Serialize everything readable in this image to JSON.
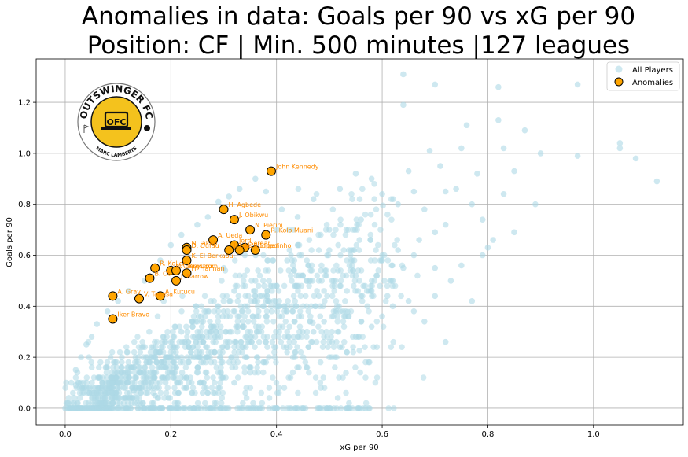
{
  "chart_data": {
    "type": "scatter",
    "title_line1": "Anomalies in data: Goals per 90 vs xG per 90",
    "title_line2": "Position: CF | Min. 500 minutes |127 leagues",
    "xlabel": "xG per 90",
    "ylabel": "Goals per 90",
    "xlim": [
      -0.055,
      1.17
    ],
    "ylim": [
      -0.065,
      1.37
    ],
    "x_ticks": [
      "0.0",
      "0.2",
      "0.4",
      "0.6",
      "0.8",
      "1.0"
    ],
    "x_tick_values": [
      0,
      0.2,
      0.4,
      0.6,
      0.8,
      1.0
    ],
    "y_ticks": [
      "0.0",
      "0.2",
      "0.4",
      "0.6",
      "0.8",
      "1.0",
      "1.2"
    ],
    "y_tick_values": [
      0,
      0.2,
      0.4,
      0.6,
      0.8,
      1.0,
      1.2
    ],
    "grid": true,
    "legend_position": "top-right",
    "colors": {
      "all_players": "#add8e6",
      "anomalies": "#ffa500",
      "anomaly_labels": "#ff8c00"
    },
    "series": [
      {
        "name": "All Players",
        "points": [
          [
            0.64,
            1.31
          ],
          [
            0.7,
            1.27
          ],
          [
            0.97,
            1.27
          ],
          [
            0.82,
            1.26
          ],
          [
            0.64,
            1.19
          ],
          [
            0.82,
            1.13
          ],
          [
            0.76,
            1.11
          ],
          [
            0.87,
            1.09
          ],
          [
            1.05,
            1.04
          ],
          [
            1.05,
            1.02
          ],
          [
            0.9,
            1.0
          ],
          [
            0.97,
            0.99
          ],
          [
            1.08,
            0.98
          ],
          [
            0.69,
            1.01
          ],
          [
            0.75,
            1.02
          ],
          [
            0.83,
            1.02
          ],
          [
            0.71,
            0.95
          ],
          [
            0.85,
            0.93
          ],
          [
            0.78,
            0.92
          ],
          [
            0.65,
            0.93
          ],
          [
            0.55,
            0.92
          ],
          [
            0.58,
            0.9
          ],
          [
            1.12,
            0.89
          ],
          [
            0.83,
            0.84
          ],
          [
            0.74,
            0.86
          ],
          [
            0.66,
            0.85
          ],
          [
            0.72,
            0.85
          ],
          [
            0.6,
            0.84
          ],
          [
            0.52,
            0.86
          ],
          [
            0.63,
            0.8
          ],
          [
            0.68,
            0.78
          ],
          [
            0.77,
            0.8
          ],
          [
            0.89,
            0.8
          ],
          [
            0.79,
            0.74
          ],
          [
            0.72,
            0.72
          ],
          [
            0.85,
            0.69
          ],
          [
            0.81,
            0.66
          ],
          [
            0.8,
            0.63
          ],
          [
            0.79,
            0.6
          ],
          [
            0.77,
            0.42
          ],
          [
            0.72,
            0.26
          ],
          [
            0.68,
            0.34
          ],
          [
            0.65,
            0.42
          ],
          [
            0.62,
            0.5
          ],
          [
            0.58,
            0.46
          ],
          [
            0.55,
            0.52
          ],
          [
            0.6,
            0.58
          ],
          [
            0.63,
            0.62
          ],
          [
            0.67,
            0.66
          ],
          [
            0.7,
            0.69
          ],
          [
            0.56,
            0.74
          ],
          [
            0.5,
            0.7
          ],
          [
            0.47,
            0.82
          ],
          [
            0.44,
            0.75
          ],
          [
            0.41,
            0.78
          ],
          [
            0.38,
            0.85
          ],
          [
            0.36,
            0.9
          ],
          [
            0.33,
            0.86
          ],
          [
            0.31,
            0.83
          ],
          [
            0.29,
            0.81
          ],
          [
            0.27,
            0.75
          ],
          [
            0.25,
            0.72
          ],
          [
            0.22,
            0.68
          ],
          [
            0.2,
            0.64
          ],
          [
            0.18,
            0.58
          ],
          [
            0.15,
            0.5
          ],
          [
            0.12,
            0.46
          ],
          [
            0.1,
            0.42
          ],
          [
            0.08,
            0.38
          ],
          [
            0.06,
            0.33
          ],
          [
            0.05,
            0.28
          ],
          [
            0.04,
            0.25
          ],
          [
            0.03,
            0.2
          ],
          [
            0.02,
            0.15
          ],
          [
            0.02,
            0.09
          ],
          [
            0.0,
            0.0
          ],
          [
            0.05,
            0.0
          ],
          [
            0.1,
            0.0
          ],
          [
            0.15,
            0.0
          ],
          [
            0.2,
            0.0
          ],
          [
            0.25,
            0.0
          ],
          [
            0.3,
            0.0
          ],
          [
            0.35,
            0.0
          ],
          [
            0.4,
            0.0
          ],
          [
            0.45,
            0.0
          ],
          [
            0.48,
            0.0
          ],
          [
            0.5,
            0.2
          ],
          [
            0.52,
            0.24
          ],
          [
            0.55,
            0.28
          ],
          [
            0.58,
            0.32
          ],
          [
            0.6,
            0.36
          ],
          [
            0.62,
            0.4
          ],
          [
            0.66,
            0.38
          ],
          [
            0.7,
            0.44
          ],
          [
            0.73,
            0.5
          ],
          [
            0.75,
            0.56
          ],
          [
            0.48,
            0.44
          ],
          [
            0.45,
            0.52
          ],
          [
            0.42,
            0.58
          ],
          [
            0.4,
            0.48
          ],
          [
            0.38,
            0.42
          ],
          [
            0.36,
            0.5
          ],
          [
            0.34,
            0.4
          ],
          [
            0.32,
            0.46
          ],
          [
            0.3,
            0.38
          ],
          [
            0.28,
            0.32
          ],
          [
            0.26,
            0.28
          ],
          [
            0.24,
            0.34
          ],
          [
            0.22,
            0.3
          ],
          [
            0.2,
            0.26
          ],
          [
            0.18,
            0.22
          ],
          [
            0.16,
            0.18
          ],
          [
            0.14,
            0.14
          ],
          [
            0.12,
            0.12
          ],
          [
            0.1,
            0.1
          ],
          [
            0.08,
            0.08
          ],
          [
            0.06,
            0.06
          ],
          [
            0.3,
            0.55
          ],
          [
            0.34,
            0.6
          ],
          [
            0.44,
            0.64
          ],
          [
            0.5,
            0.62
          ],
          [
            0.54,
            0.6
          ],
          [
            0.46,
            0.56
          ],
          [
            0.52,
            0.48
          ],
          [
            0.56,
            0.44
          ],
          [
            0.59,
            0.52
          ],
          [
            0.61,
            0.44
          ],
          [
            0.64,
            0.55
          ],
          [
            0.66,
            0.6
          ],
          [
            0.7,
            0.55
          ],
          [
            0.53,
            0.36
          ],
          [
            0.49,
            0.34
          ],
          [
            0.47,
            0.3
          ],
          [
            0.44,
            0.28
          ],
          [
            0.42,
            0.22
          ],
          [
            0.38,
            0.18
          ],
          [
            0.35,
            0.14
          ],
          [
            0.32,
            0.1
          ],
          [
            0.29,
            0.08
          ],
          [
            0.26,
            0.06
          ],
          [
            0.23,
            0.12
          ],
          [
            0.19,
            0.1
          ],
          [
            0.17,
            0.05
          ],
          [
            0.13,
            0.07
          ]
        ]
      },
      {
        "name": "Anomalies",
        "points": [
          [
            0.39,
            0.93,
            "John Kennedy"
          ],
          [
            0.3,
            0.78,
            "H. Agbede"
          ],
          [
            0.32,
            0.74,
            "J. Obikwu"
          ],
          [
            0.35,
            0.7,
            "N. Pierini"
          ],
          [
            0.38,
            0.68,
            "R. Kolo Muani"
          ],
          [
            0.28,
            0.66,
            "A. Ueda"
          ],
          [
            0.32,
            0.64,
            "Jordi"
          ],
          [
            0.34,
            0.63,
            "Serdar"
          ],
          [
            0.36,
            0.62,
            "Elpedinho"
          ],
          [
            0.23,
            0.63,
            "N. Jakab"
          ],
          [
            0.23,
            0.62,
            "D. Dufau"
          ],
          [
            0.31,
            0.62,
            "J. Luis"
          ],
          [
            0.33,
            0.62,
            "M. Rüdiger"
          ],
          [
            0.23,
            0.58,
            "K. El Berkaoui"
          ],
          [
            0.17,
            0.55,
            "R. Koller"
          ],
          [
            0.2,
            0.54,
            "M. Bergström"
          ],
          [
            0.21,
            0.54,
            "A. Kuyucu"
          ],
          [
            0.23,
            0.53,
            "H. Hannan"
          ],
          [
            0.16,
            0.51,
            "B. Ot"
          ],
          [
            0.21,
            0.5,
            "J. Barrow"
          ],
          [
            0.09,
            0.44,
            "A. Gray"
          ],
          [
            0.14,
            0.43,
            "V. Tanasa"
          ],
          [
            0.18,
            0.44,
            "A. Kutucu"
          ],
          [
            0.09,
            0.35,
            "Iker Bravo"
          ]
        ]
      }
    ]
  },
  "logo": {
    "top_text": "OUTSWINGER FC",
    "bottom_text": "MARC LAMBERTS",
    "monogram": "OFC"
  }
}
